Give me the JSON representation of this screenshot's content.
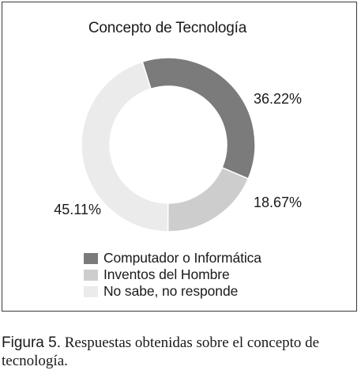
{
  "chart_data": {
    "type": "pie",
    "title": "Concepto de Tecnología",
    "categories": [
      "Computador o Informática",
      "Inventos del Hombre",
      "No sabe, no responde"
    ],
    "values": [
      36.22,
      18.67,
      45.11
    ],
    "labels": [
      "36.22%",
      "18.67%",
      "45.11%"
    ],
    "colors": [
      "#7b7b7b",
      "#cdcdcd",
      "#ebebeb"
    ],
    "donut": true,
    "legend": "bottom"
  },
  "caption": {
    "label": "Figura 5.",
    "text": " Respuestas obtenidas sobre el concepto de tecnología."
  }
}
